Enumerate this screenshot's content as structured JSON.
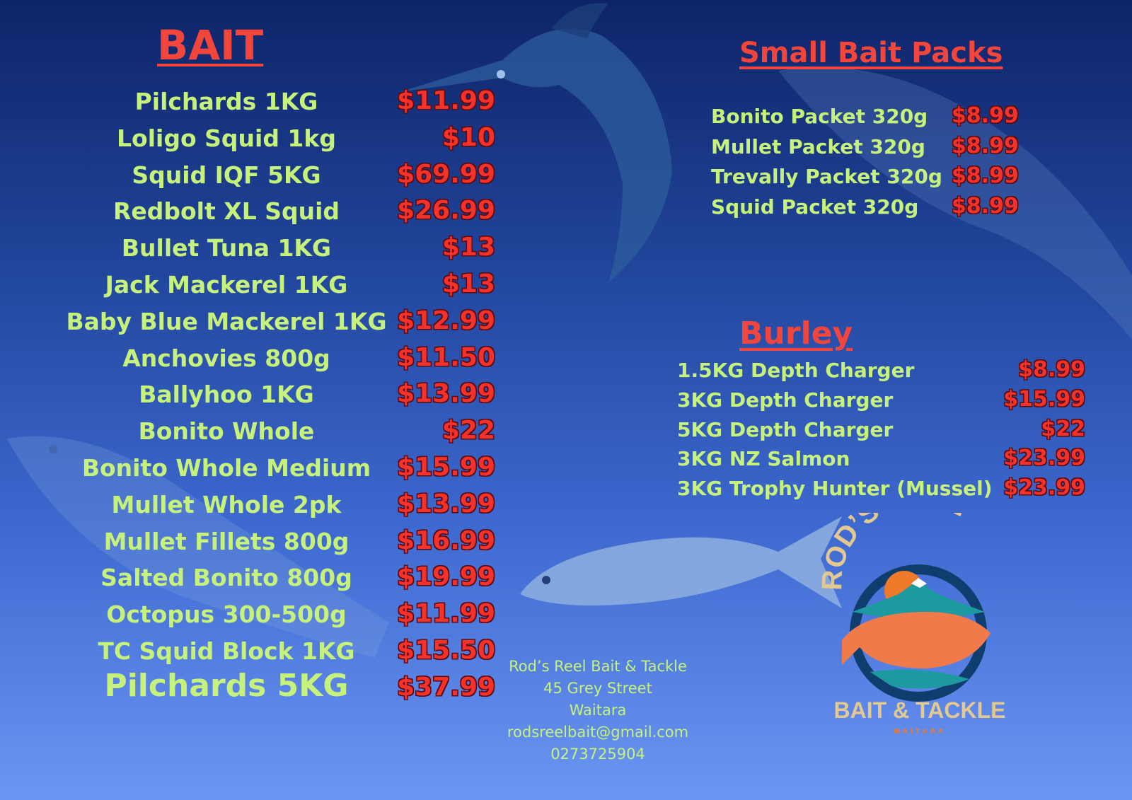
{
  "bait": {
    "title": "BAIT",
    "items": [
      {
        "name": "Pilchards 1KG",
        "price": "$11.99"
      },
      {
        "name": "Loligo Squid 1kg",
        "price": "$10"
      },
      {
        "name": "Squid IQF 5KG",
        "price": "$69.99"
      },
      {
        "name": "Redbolt XL Squid",
        "price": "$26.99"
      },
      {
        "name": "Bullet Tuna 1KG",
        "price": "$13"
      },
      {
        "name": "Jack Mackerel 1KG",
        "price": "$13"
      },
      {
        "name": "Baby Blue Mackerel 1KG",
        "price": "$12.99"
      },
      {
        "name": "Anchovies 800g",
        "price": "$11.50"
      },
      {
        "name": "Ballyhoo 1KG",
        "price": "$13.99"
      },
      {
        "name": "Bonito Whole",
        "price": "$22"
      },
      {
        "name": "Bonito Whole Medium",
        "price": "$15.99"
      },
      {
        "name": "Mullet Whole 2pk",
        "price": "$13.99"
      },
      {
        "name": "Mullet Fillets 800g",
        "price": "$16.99"
      },
      {
        "name": "Salted Bonito 800g",
        "price": "$19.99"
      },
      {
        "name": "Octopus 300-500g",
        "price": "$11.99"
      },
      {
        "name": "TC Squid Block 1KG",
        "price": "$15.50"
      },
      {
        "name": "Pilchards 5KG",
        "price": "$37.99"
      }
    ]
  },
  "small_bait_packs": {
    "title": "Small Bait Packs",
    "items": [
      {
        "name": "Bonito Packet 320g",
        "price": "$8.99"
      },
      {
        "name": "Mullet Packet 320g",
        "price": "$8.99"
      },
      {
        "name": "Trevally Packet 320g",
        "price": "$8.99"
      },
      {
        "name": "Squid Packet 320g",
        "price": "$8.99"
      }
    ]
  },
  "burley": {
    "title": "Burley",
    "items": [
      {
        "name": "1.5KG Depth Charger",
        "price": "$8.99"
      },
      {
        "name": "3KG Depth Charger",
        "price": "$15.99"
      },
      {
        "name": "5KG Depth Charger",
        "price": "$22"
      },
      {
        "name": "3KG NZ Salmon",
        "price": "$23.99"
      },
      {
        "name": "3KG Trophy Hunter (Mussel)",
        "price": "$23.99"
      }
    ]
  },
  "contact": {
    "business": "Rod’s Reel Bait & Tackle",
    "street": "45 Grey Street",
    "town": "Waitara",
    "email": "rodsreelbait@gmail.com",
    "phone": "0273725904"
  },
  "logo": {
    "top_text": "ROD’S REEL",
    "bottom_text": "BAIT & TACKLE",
    "sub_text": "WAITARA"
  },
  "colors": {
    "item_text": "#c6f27c",
    "price": "#f3322b",
    "heading": "#f2453c",
    "logo_text": "#e3c98f"
  }
}
